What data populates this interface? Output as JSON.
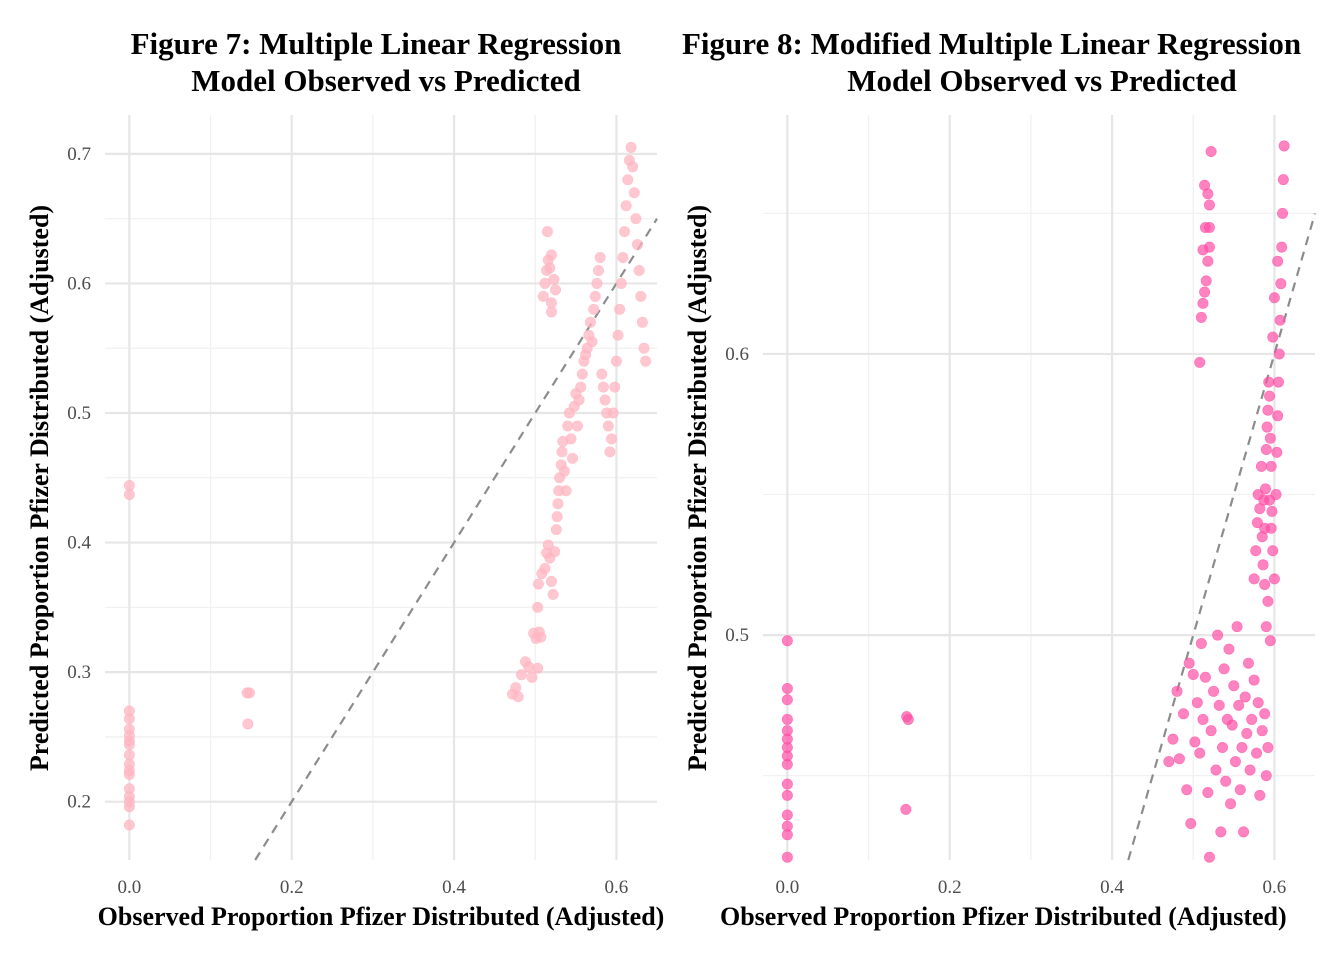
{
  "chart_data": [
    {
      "type": "scatter",
      "title_lines": [
        "Figure 7: Multiple Linear Regression",
        "Model Observed vs Predicted"
      ],
      "xlabel": "Observed Proportion Pfizer Distributed (Adjusted)",
      "ylabel": "Predicted Proportion Pfizer Distributed (Adjusted)",
      "xlim": [
        -0.03,
        0.65
      ],
      "ylim": [
        0.155,
        0.73
      ],
      "x_ticks": [
        0.0,
        0.2,
        0.4,
        0.6
      ],
      "x_tick_labels": [
        "0.0",
        "0.2",
        "0.4",
        "0.6"
      ],
      "y_ticks": [
        0.2,
        0.3,
        0.4,
        0.5,
        0.6,
        0.7
      ],
      "y_tick_labels": [
        "0.2",
        "0.3",
        "0.4",
        "0.5",
        "0.6",
        "0.7"
      ],
      "reference_line": "y = x (dashed)",
      "grid": true,
      "point_color": "#ffb6c1",
      "point_opacity": 0.75,
      "points": [
        [
          0.0,
          0.444
        ],
        [
          0.0,
          0.437
        ],
        [
          0.0,
          0.27
        ],
        [
          0.0,
          0.264
        ],
        [
          0.0,
          0.256
        ],
        [
          0.0,
          0.251
        ],
        [
          0.0,
          0.247
        ],
        [
          0.0,
          0.244
        ],
        [
          0.0,
          0.236
        ],
        [
          0.0,
          0.229
        ],
        [
          0.0,
          0.224
        ],
        [
          0.0,
          0.221
        ],
        [
          0.0,
          0.21
        ],
        [
          0.0,
          0.204
        ],
        [
          0.0,
          0.2
        ],
        [
          0.0,
          0.196
        ],
        [
          0.0,
          0.182
        ],
        [
          0.145,
          0.284
        ],
        [
          0.148,
          0.284
        ],
        [
          0.146,
          0.26
        ],
        [
          0.472,
          0.283
        ],
        [
          0.476,
          0.288
        ],
        [
          0.479,
          0.281
        ],
        [
          0.483,
          0.298
        ],
        [
          0.488,
          0.308
        ],
        [
          0.492,
          0.304
        ],
        [
          0.496,
          0.296
        ],
        [
          0.498,
          0.33
        ],
        [
          0.501,
          0.326
        ],
        [
          0.503,
          0.35
        ],
        [
          0.504,
          0.368
        ],
        [
          0.505,
          0.331
        ],
        [
          0.507,
          0.327
        ],
        [
          0.503,
          0.303
        ],
        [
          0.508,
          0.376
        ],
        [
          0.512,
          0.38
        ],
        [
          0.514,
          0.392
        ],
        [
          0.516,
          0.398
        ],
        [
          0.518,
          0.388
        ],
        [
          0.52,
          0.37
        ],
        [
          0.522,
          0.36
        ],
        [
          0.524,
          0.393
        ],
        [
          0.526,
          0.41
        ],
        [
          0.527,
          0.42
        ],
        [
          0.528,
          0.43
        ],
        [
          0.529,
          0.44
        ],
        [
          0.53,
          0.45
        ],
        [
          0.532,
          0.46
        ],
        [
          0.533,
          0.47
        ],
        [
          0.534,
          0.478
        ],
        [
          0.536,
          0.455
        ],
        [
          0.538,
          0.44
        ],
        [
          0.54,
          0.49
        ],
        [
          0.542,
          0.5
        ],
        [
          0.544,
          0.48
        ],
        [
          0.546,
          0.465
        ],
        [
          0.548,
          0.505
        ],
        [
          0.55,
          0.515
        ],
        [
          0.552,
          0.49
        ],
        [
          0.554,
          0.51
        ],
        [
          0.556,
          0.52
        ],
        [
          0.558,
          0.53
        ],
        [
          0.56,
          0.54
        ],
        [
          0.562,
          0.545
        ],
        [
          0.564,
          0.55
        ],
        [
          0.566,
          0.56
        ],
        [
          0.568,
          0.57
        ],
        [
          0.57,
          0.555
        ],
        [
          0.572,
          0.58
        ],
        [
          0.574,
          0.59
        ],
        [
          0.576,
          0.6
        ],
        [
          0.578,
          0.61
        ],
        [
          0.58,
          0.62
        ],
        [
          0.582,
          0.53
        ],
        [
          0.584,
          0.52
        ],
        [
          0.586,
          0.51
        ],
        [
          0.588,
          0.5
        ],
        [
          0.59,
          0.49
        ],
        [
          0.592,
          0.47
        ],
        [
          0.594,
          0.48
        ],
        [
          0.596,
          0.5
        ],
        [
          0.598,
          0.52
        ],
        [
          0.6,
          0.54
        ],
        [
          0.602,
          0.56
        ],
        [
          0.604,
          0.58
        ],
        [
          0.606,
          0.6
        ],
        [
          0.608,
          0.62
        ],
        [
          0.61,
          0.64
        ],
        [
          0.612,
          0.66
        ],
        [
          0.614,
          0.68
        ],
        [
          0.616,
          0.695
        ],
        [
          0.618,
          0.705
        ],
        [
          0.62,
          0.69
        ],
        [
          0.622,
          0.67
        ],
        [
          0.624,
          0.65
        ],
        [
          0.626,
          0.63
        ],
        [
          0.628,
          0.61
        ],
        [
          0.63,
          0.59
        ],
        [
          0.632,
          0.57
        ],
        [
          0.634,
          0.55
        ],
        [
          0.636,
          0.54
        ],
        [
          0.51,
          0.59
        ],
        [
          0.512,
          0.6
        ],
        [
          0.514,
          0.61
        ],
        [
          0.516,
          0.618
        ],
        [
          0.518,
          0.612
        ],
        [
          0.52,
          0.585
        ],
        [
          0.52,
          0.578
        ],
        [
          0.515,
          0.64
        ],
        [
          0.52,
          0.622
        ],
        [
          0.523,
          0.603
        ],
        [
          0.525,
          0.595
        ]
      ]
    },
    {
      "type": "scatter",
      "title_lines": [
        "Figure 8: Modified Multiple Linear Regression",
        "Model Observed vs Predicted"
      ],
      "xlabel": "Observed Proportion Pfizer Distributed (Adjusted)",
      "ylabel": "Predicted Proportion Pfizer Distributed (Adjusted)",
      "xlim": [
        -0.03,
        0.65
      ],
      "ylim": [
        0.42,
        0.685
      ],
      "x_ticks": [
        0.0,
        0.2,
        0.4,
        0.6
      ],
      "x_tick_labels": [
        "0.0",
        "0.2",
        "0.4",
        "0.6"
      ],
      "y_ticks": [
        0.5,
        0.6
      ],
      "y_tick_labels": [
        "0.5",
        "0.6"
      ],
      "reference_line": "y = x (dashed)",
      "grid": true,
      "point_color": "#ff4fa5",
      "point_opacity": 0.7,
      "points": [
        [
          0.0,
          0.498
        ],
        [
          0.0,
          0.481
        ],
        [
          0.0,
          0.477
        ],
        [
          0.0,
          0.47
        ],
        [
          0.0,
          0.466
        ],
        [
          0.0,
          0.463
        ],
        [
          0.0,
          0.46
        ],
        [
          0.0,
          0.457
        ],
        [
          0.0,
          0.454
        ],
        [
          0.0,
          0.447
        ],
        [
          0.0,
          0.443
        ],
        [
          0.0,
          0.436
        ],
        [
          0.0,
          0.432
        ],
        [
          0.0,
          0.429
        ],
        [
          0.0,
          0.421
        ],
        [
          0.147,
          0.471
        ],
        [
          0.149,
          0.47
        ],
        [
          0.146,
          0.438
        ],
        [
          0.508,
          0.597
        ],
        [
          0.51,
          0.613
        ],
        [
          0.512,
          0.618
        ],
        [
          0.514,
          0.622
        ],
        [
          0.516,
          0.626
        ],
        [
          0.518,
          0.633
        ],
        [
          0.52,
          0.638
        ],
        [
          0.512,
          0.637
        ],
        [
          0.515,
          0.645
        ],
        [
          0.52,
          0.645
        ],
        [
          0.514,
          0.66
        ],
        [
          0.518,
          0.657
        ],
        [
          0.52,
          0.653
        ],
        [
          0.522,
          0.672
        ],
        [
          0.47,
          0.455
        ],
        [
          0.475,
          0.463
        ],
        [
          0.48,
          0.48
        ],
        [
          0.483,
          0.456
        ],
        [
          0.488,
          0.472
        ],
        [
          0.492,
          0.445
        ],
        [
          0.495,
          0.49
        ],
        [
          0.497,
          0.433
        ],
        [
          0.5,
          0.486
        ],
        [
          0.502,
          0.462
        ],
        [
          0.505,
          0.476
        ],
        [
          0.508,
          0.458
        ],
        [
          0.51,
          0.497
        ],
        [
          0.512,
          0.47
        ],
        [
          0.515,
          0.485
        ],
        [
          0.518,
          0.444
        ],
        [
          0.52,
          0.421
        ],
        [
          0.522,
          0.466
        ],
        [
          0.525,
          0.48
        ],
        [
          0.528,
          0.452
        ],
        [
          0.53,
          0.5
        ],
        [
          0.532,
          0.475
        ],
        [
          0.534,
          0.43
        ],
        [
          0.536,
          0.46
        ],
        [
          0.538,
          0.488
        ],
        [
          0.54,
          0.448
        ],
        [
          0.542,
          0.47
        ],
        [
          0.544,
          0.495
        ],
        [
          0.546,
          0.44
        ],
        [
          0.548,
          0.468
        ],
        [
          0.55,
          0.482
        ],
        [
          0.552,
          0.455
        ],
        [
          0.554,
          0.503
        ],
        [
          0.556,
          0.475
        ],
        [
          0.558,
          0.445
        ],
        [
          0.56,
          0.46
        ],
        [
          0.562,
          0.43
        ],
        [
          0.564,
          0.478
        ],
        [
          0.566,
          0.465
        ],
        [
          0.568,
          0.49
        ],
        [
          0.57,
          0.452
        ],
        [
          0.572,
          0.47
        ],
        [
          0.575,
          0.484
        ],
        [
          0.578,
          0.458
        ],
        [
          0.58,
          0.476
        ],
        [
          0.582,
          0.443
        ],
        [
          0.585,
          0.466
        ],
        [
          0.588,
          0.472
        ],
        [
          0.59,
          0.45
        ],
        [
          0.592,
          0.46
        ],
        [
          0.595,
          0.498
        ],
        [
          0.575,
          0.52
        ],
        [
          0.577,
          0.53
        ],
        [
          0.579,
          0.54
        ],
        [
          0.58,
          0.55
        ],
        [
          0.582,
          0.545
        ],
        [
          0.584,
          0.56
        ],
        [
          0.585,
          0.535
        ],
        [
          0.586,
          0.525
        ],
        [
          0.587,
          0.548
        ],
        [
          0.588,
          0.538
        ],
        [
          0.589,
          0.552
        ],
        [
          0.59,
          0.566
        ],
        [
          0.591,
          0.574
        ],
        [
          0.592,
          0.58
        ],
        [
          0.593,
          0.59
        ],
        [
          0.594,
          0.585
        ],
        [
          0.595,
          0.57
        ],
        [
          0.596,
          0.56
        ],
        [
          0.597,
          0.544
        ],
        [
          0.598,
          0.53
        ],
        [
          0.6,
          0.52
        ],
        [
          0.602,
          0.55
        ],
        [
          0.603,
          0.565
        ],
        [
          0.604,
          0.578
        ],
        [
          0.605,
          0.59
        ],
        [
          0.606,
          0.6
        ],
        [
          0.607,
          0.612
        ],
        [
          0.608,
          0.625
        ],
        [
          0.609,
          0.638
        ],
        [
          0.61,
          0.65
        ],
        [
          0.611,
          0.662
        ],
        [
          0.612,
          0.674
        ],
        [
          0.604,
          0.633
        ],
        [
          0.6,
          0.62
        ],
        [
          0.598,
          0.606
        ],
        [
          0.59,
          0.503
        ],
        [
          0.592,
          0.512
        ],
        [
          0.588,
          0.518
        ],
        [
          0.594,
          0.548
        ],
        [
          0.596,
          0.538
        ]
      ]
    }
  ]
}
